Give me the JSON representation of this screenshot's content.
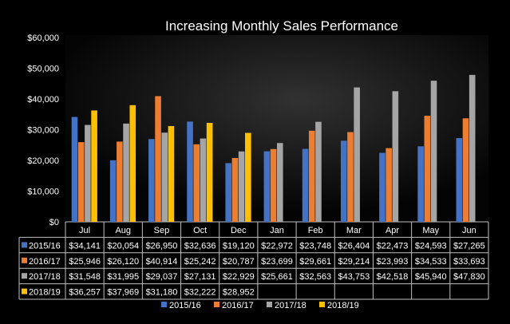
{
  "chart_data": {
    "type": "bar",
    "title": "Increasing Monthly Sales Performance",
    "categories": [
      "Jul",
      "Aug",
      "Sep",
      "Oct",
      "Dec",
      "Jan",
      "Feb",
      "Mar",
      "Apr",
      "May",
      "Jun"
    ],
    "ylim": [
      0,
      60000
    ],
    "yticks": [
      "$0",
      "$10,000",
      "$20,000",
      "$30,000",
      "$40,000",
      "$50,000",
      "$60,000"
    ],
    "grid": false,
    "legend_position": "bottom",
    "has_data_table": true,
    "series": [
      {
        "name": "2015/16",
        "color": "#4472C4",
        "values": [
          34141,
          20054,
          26950,
          32636,
          19120,
          22972,
          23748,
          26404,
          22473,
          24593,
          27265
        ],
        "labels": [
          "$34,141",
          "$20,054",
          "$26,950",
          "$32,636",
          "$19,120",
          "$22,972",
          "$23,748",
          "$26,404",
          "$22,473",
          "$24,593",
          "$27,265"
        ]
      },
      {
        "name": "2016/17",
        "color": "#ED7D31",
        "values": [
          25946,
          26120,
          40914,
          25242,
          20787,
          23699,
          29661,
          29214,
          23993,
          34533,
          33693
        ],
        "labels": [
          "$25,946",
          "$26,120",
          "$40,914",
          "$25,242",
          "$20,787",
          "$23,699",
          "$29,661",
          "$29,214",
          "$23,993",
          "$34,533",
          "$33,693"
        ]
      },
      {
        "name": "2017/18",
        "color": "#A5A5A5",
        "values": [
          31548,
          31995,
          29037,
          27131,
          22929,
          25661,
          32563,
          43753,
          42518,
          45940,
          47830
        ],
        "labels": [
          "$31,548",
          "$31,995",
          "$29,037",
          "$27,131",
          "$22,929",
          "$25,661",
          "$32,563",
          "$43,753",
          "$42,518",
          "$45,940",
          "$47,830"
        ]
      },
      {
        "name": "2018/19",
        "color": "#FFC000",
        "values": [
          36257,
          37969,
          31180,
          32222,
          28952,
          null,
          null,
          null,
          null,
          null,
          null
        ],
        "labels": [
          "$36,257",
          "$37,969",
          "$31,180",
          "$32,222",
          "$28,952",
          "",
          "",
          "",
          "",
          "",
          ""
        ]
      }
    ]
  }
}
